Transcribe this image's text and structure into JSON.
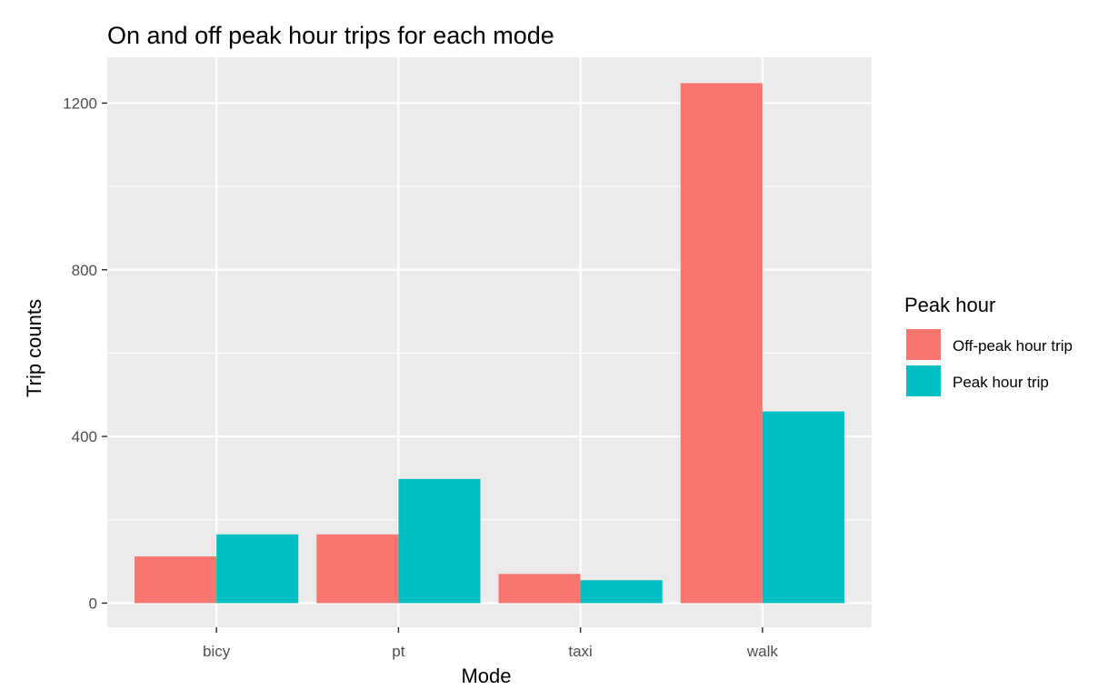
{
  "chart_data": {
    "type": "bar",
    "title": "On and off peak hour trips for each mode",
    "xlabel": "Mode",
    "ylabel": "Trip counts",
    "categories": [
      "bicy",
      "pt",
      "taxi",
      "walk"
    ],
    "series": [
      {
        "name": "Off-peak hour trip",
        "color": "#F8766D",
        "values": [
          112,
          165,
          70,
          1248
        ]
      },
      {
        "name": "Peak hour trip",
        "color": "#00BFC4",
        "values": [
          165,
          298,
          55,
          460
        ]
      }
    ],
    "yticks": [
      "0",
      "400",
      "800",
      "1200"
    ],
    "ylim": [
      -58,
      1310
    ],
    "grid": true,
    "legend": {
      "title": "Peak hour",
      "position": "right"
    },
    "panel_color": "#EBEBEB",
    "grid_color": "#FFFFFF"
  }
}
